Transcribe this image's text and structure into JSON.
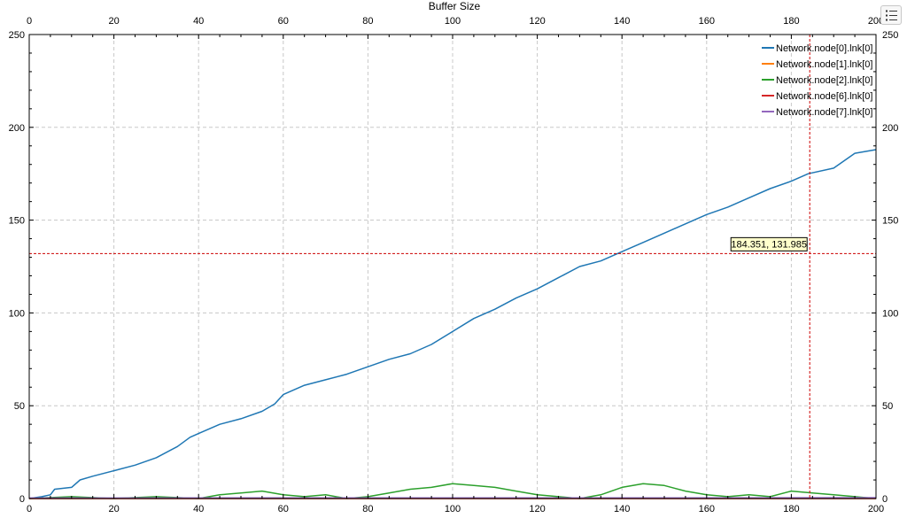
{
  "chart_data": {
    "type": "line",
    "title": "Buffer Size",
    "xlabel": "",
    "ylabel": "",
    "xlim": [
      0,
      200
    ],
    "ylim": [
      0,
      250
    ],
    "x_ticks": [
      0,
      20,
      40,
      60,
      80,
      100,
      120,
      140,
      160,
      180,
      200
    ],
    "y_ticks": [
      0,
      50,
      100,
      150,
      200,
      250
    ],
    "x_tick_labels": [
      "0",
      "20",
      "40",
      "60",
      "80",
      "100",
      "120",
      "140",
      "160",
      "180",
      "200"
    ],
    "y_tick_labels": [
      "0",
      "50",
      "100",
      "150",
      "200",
      "250"
    ],
    "grid": true,
    "legend_position": "top-right",
    "series": [
      {
        "name": "Network.node[0].lnk[0]",
        "color": "#1f77b4",
        "x": [
          0,
          3,
          5,
          6,
          10,
          12,
          15,
          20,
          25,
          30,
          35,
          38,
          40,
          45,
          50,
          55,
          58,
          60,
          65,
          70,
          75,
          80,
          85,
          90,
          95,
          100,
          105,
          110,
          115,
          120,
          125,
          130,
          135,
          140,
          145,
          150,
          155,
          160,
          165,
          170,
          175,
          180,
          184,
          190,
          195,
          200
        ],
        "y": [
          0,
          1,
          2,
          5,
          6,
          10,
          12,
          15,
          18,
          22,
          28,
          33,
          35,
          40,
          43,
          47,
          51,
          56,
          61,
          64,
          67,
          71,
          75,
          78,
          83,
          90,
          97,
          102,
          108,
          113,
          119,
          125,
          128,
          133,
          138,
          143,
          148,
          153,
          157,
          162,
          167,
          171,
          175,
          178,
          186,
          188
        ]
      },
      {
        "name": "Network.node[1].lnk[0]",
        "color": "#ff7f0e",
        "x": [
          0,
          50,
          100,
          150,
          200
        ],
        "y": [
          0,
          0,
          0,
          0,
          0
        ]
      },
      {
        "name": "Network.node[2].lnk[0]",
        "color": "#2ca02c",
        "x": [
          0,
          10,
          20,
          30,
          40,
          45,
          50,
          55,
          60,
          65,
          70,
          75,
          80,
          85,
          90,
          95,
          100,
          105,
          110,
          115,
          120,
          125,
          130,
          135,
          140,
          145,
          150,
          155,
          160,
          165,
          170,
          175,
          180,
          185,
          190,
          195,
          200
        ],
        "y": [
          0,
          1,
          0,
          1,
          0,
          2,
          3,
          4,
          2,
          1,
          2,
          0,
          1,
          3,
          5,
          6,
          8,
          7,
          6,
          4,
          2,
          1,
          0,
          2,
          6,
          8,
          7,
          4,
          2,
          1,
          2,
          1,
          4,
          3,
          2,
          1,
          0
        ]
      },
      {
        "name": "Network.node[6].lnk[0]",
        "color": "#d62728",
        "x": [
          0,
          50,
          100,
          150,
          200
        ],
        "y": [
          0,
          0,
          0,
          0,
          0
        ]
      },
      {
        "name": "Network.node[7].lnk[0]",
        "color": "#9467bd",
        "x": [
          0,
          50,
          100,
          150,
          200
        ],
        "y": [
          0.3,
          0.4,
          0.4,
          0.4,
          0.5
        ]
      }
    ],
    "cursor": {
      "x": 184.351,
      "y": 131.985,
      "label": "184.351, 131.985",
      "color": "#cc0000"
    }
  },
  "toolbar": {
    "menu_icon": "list-menu-icon"
  }
}
